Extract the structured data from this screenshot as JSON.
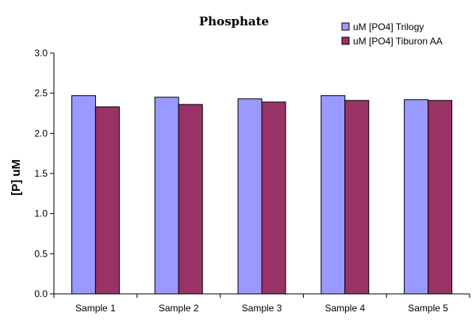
{
  "chart_data": {
    "type": "bar",
    "title": "Phosphate",
    "xlabel": "",
    "ylabel": "[P] uM",
    "categories": [
      "Sample 1",
      "Sample 2",
      "Sample 3",
      "Sample 4",
      "Sample 5"
    ],
    "series": [
      {
        "name": "uM [PO4] Trilogy",
        "color": "#9999ff",
        "values": [
          2.47,
          2.45,
          2.43,
          2.47,
          2.42
        ]
      },
      {
        "name": "uM [PO4] Tiburon AA",
        "color": "#993366",
        "values": [
          2.33,
          2.36,
          2.39,
          2.41,
          2.41
        ]
      }
    ],
    "ylim": [
      0,
      3
    ],
    "yticks": [
      "0.0",
      "0.5",
      "1.0",
      "1.5",
      "2.0",
      "2.5",
      "3.0"
    ],
    "grid": false,
    "legend_position": "top-right"
  }
}
